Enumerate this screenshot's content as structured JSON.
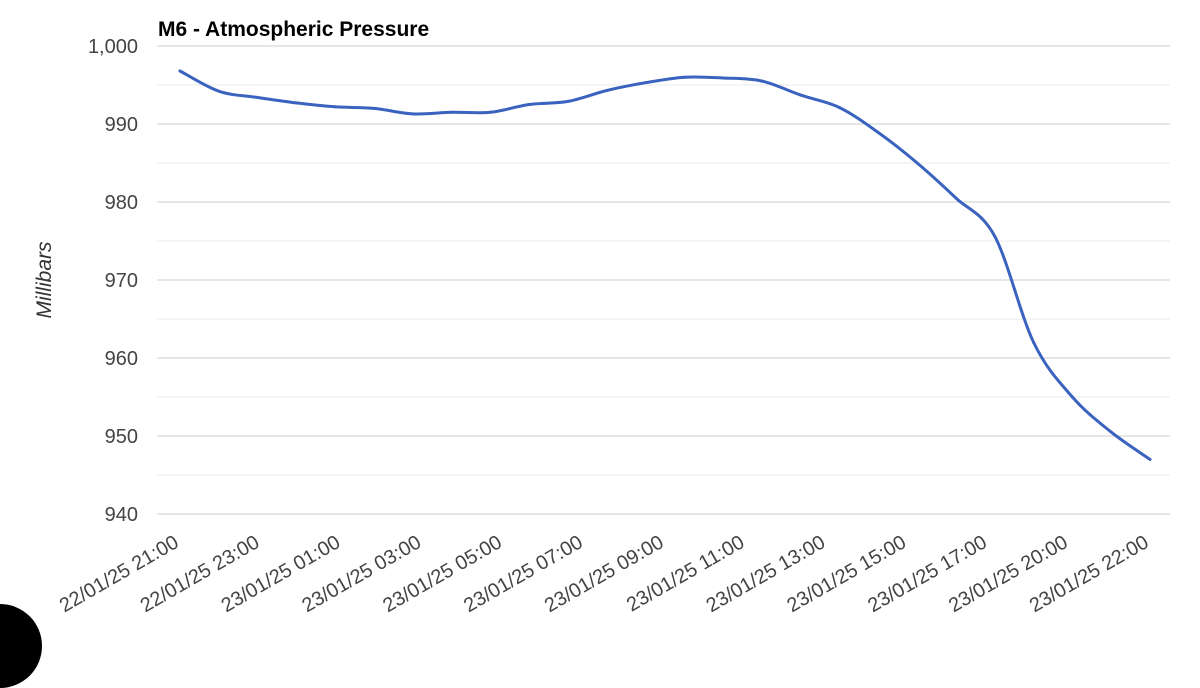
{
  "chart_data": {
    "type": "line",
    "title": "M6 - Atmospheric Pressure",
    "ylabel": "Millibars",
    "xlabel": "",
    "ylim": [
      940,
      1000
    ],
    "y_ticks": [
      940,
      950,
      960,
      970,
      980,
      990,
      1000
    ],
    "y_tick_labels": [
      "940",
      "950",
      "960",
      "970",
      "980",
      "990",
      "1,000"
    ],
    "x_tick_labels": [
      "22/01/25 21:00",
      "22/01/25 23:00",
      "23/01/25 01:00",
      "23/01/25 03:00",
      "23/01/25 05:00",
      "23/01/25 07:00",
      "23/01/25 09:00",
      "23/01/25 11:00",
      "23/01/25 13:00",
      "23/01/25 15:00",
      "23/01/25 17:00",
      "23/01/25 20:00",
      "23/01/25 22:00"
    ],
    "x": [
      "22/01/25 21:00",
      "22/01/25 22:00",
      "22/01/25 23:00",
      "23/01/25 00:00",
      "23/01/25 01:00",
      "23/01/25 02:00",
      "23/01/25 03:00",
      "23/01/25 04:00",
      "23/01/25 05:00",
      "23/01/25 06:00",
      "23/01/25 07:00",
      "23/01/25 08:00",
      "23/01/25 09:00",
      "23/01/25 10:00",
      "23/01/25 11:00",
      "23/01/25 12:00",
      "23/01/25 13:00",
      "23/01/25 14:00",
      "23/01/25 15:00",
      "23/01/25 16:00",
      "23/01/25 17:00",
      "23/01/25 18:00",
      "23/01/25 19:00",
      "23/01/25 20:00",
      "23/01/25 21:00",
      "23/01/25 22:00"
    ],
    "series": [
      {
        "name": "",
        "color": "#3a63bf",
        "values": [
          996.8,
          994.2,
          993.4,
          992.7,
          992.2,
          992.0,
          991.3,
          991.5,
          991.5,
          992.5,
          992.9,
          994.3,
          995.3,
          996.0,
          995.9,
          995.5,
          993.7,
          992.1,
          988.9,
          985.0,
          980.5,
          975.6,
          962.0,
          955.0,
          950.5,
          947.0
        ]
      }
    ],
    "grid": true,
    "legend": "none"
  }
}
